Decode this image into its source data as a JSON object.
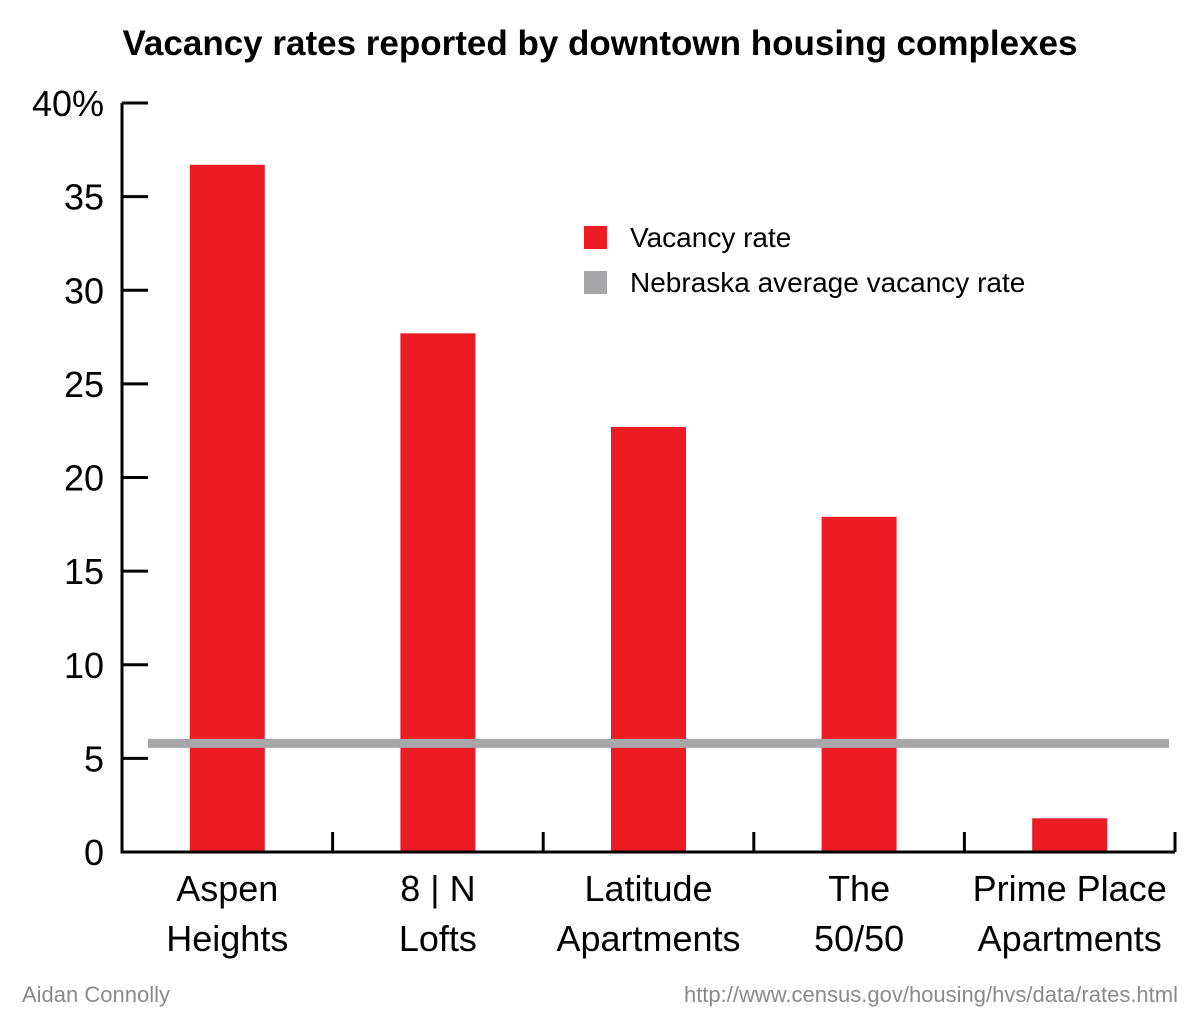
{
  "chart_data": {
    "type": "bar",
    "title": "Vacancy rates reported by downtown housing complexes",
    "categories": [
      [
        "Aspen",
        "Heights"
      ],
      [
        "8 | N",
        "Lofts"
      ],
      [
        "Latitude",
        "Apartments"
      ],
      [
        "The",
        "50/50"
      ],
      [
        "Prime Place",
        "Apartments"
      ]
    ],
    "series": [
      {
        "name": "Vacancy rate",
        "color": "#ed1c24",
        "values": [
          36.7,
          27.7,
          22.7,
          17.9,
          1.8
        ]
      }
    ],
    "reference_line": {
      "name": "Nebraska average vacancy rate",
      "color": "#a7a7aa",
      "value": 5.8
    },
    "y_ticks": [
      {
        "value": 0,
        "label": "0"
      },
      {
        "value": 5,
        "label": "5"
      },
      {
        "value": 10,
        "label": "10"
      },
      {
        "value": 15,
        "label": "15"
      },
      {
        "value": 20,
        "label": "20"
      },
      {
        "value": 25,
        "label": "25"
      },
      {
        "value": 30,
        "label": "30"
      },
      {
        "value": 35,
        "label": "35"
      },
      {
        "value": 40,
        "label": "40%"
      }
    ],
    "ylim": [
      0,
      40
    ],
    "xlabel": "",
    "ylabel": "",
    "grid": false,
    "legend_position": "top-right"
  },
  "credits": {
    "author": "Aidan Connolly",
    "source": "http://www.census.gov/housing/hvs/data/rates.html"
  }
}
